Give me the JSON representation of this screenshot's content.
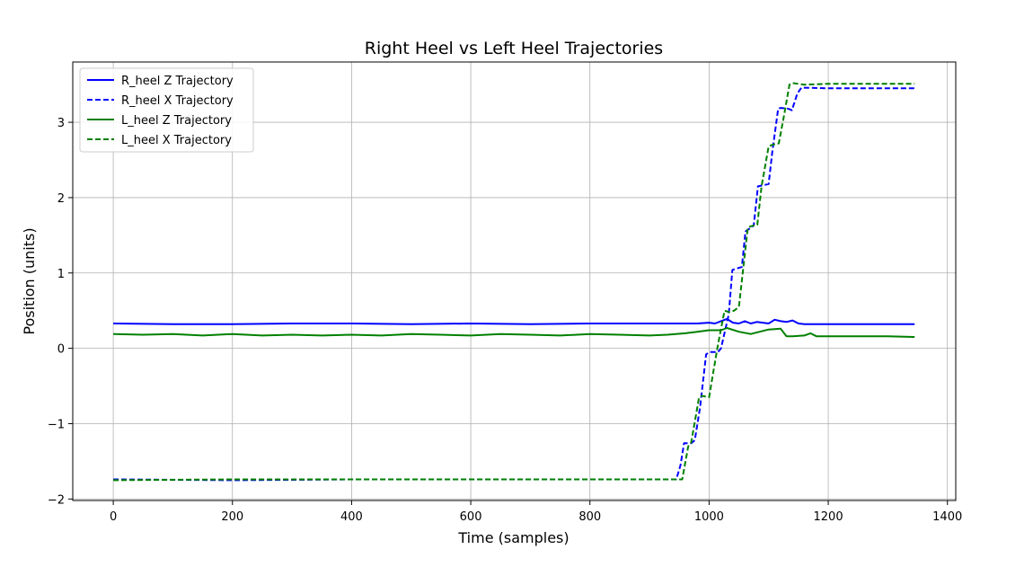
{
  "chart_data": {
    "type": "line",
    "title": "Right Heel vs Left Heel Trajectories",
    "xlabel": "Time (samples)",
    "ylabel": "Position (units)",
    "xlim": [
      -68,
      1414
    ],
    "ylim": [
      -2.02,
      3.8
    ],
    "xticks": [
      0,
      200,
      400,
      600,
      800,
      1000,
      1200,
      1400
    ],
    "yticks": [
      -2,
      -1,
      0,
      1,
      2,
      3
    ],
    "grid": true,
    "legend_position": "upper-left",
    "series": [
      {
        "name": "R_heel Z Trajectory",
        "color": "#0000ff",
        "linestyle": "solid",
        "x": [
          0,
          100,
          200,
          300,
          400,
          500,
          600,
          700,
          800,
          900,
          950,
          980,
          1000,
          1010,
          1020,
          1030,
          1040,
          1050,
          1060,
          1070,
          1080,
          1090,
          1100,
          1110,
          1120,
          1130,
          1140,
          1150,
          1160,
          1200,
          1250,
          1300,
          1345
        ],
        "y": [
          0.33,
          0.32,
          0.32,
          0.33,
          0.33,
          0.32,
          0.33,
          0.32,
          0.33,
          0.33,
          0.33,
          0.33,
          0.34,
          0.33,
          0.36,
          0.39,
          0.34,
          0.33,
          0.36,
          0.33,
          0.35,
          0.34,
          0.33,
          0.38,
          0.36,
          0.35,
          0.37,
          0.33,
          0.32,
          0.32,
          0.32,
          0.32,
          0.32
        ]
      },
      {
        "name": "R_heel X Trajectory",
        "color": "#0000ff",
        "linestyle": "dashed",
        "x": [
          0,
          200,
          400,
          600,
          800,
          945,
          952,
          958,
          970,
          976,
          985,
          995,
          1001,
          1015,
          1020,
          1033,
          1039,
          1055,
          1061,
          1075,
          1082,
          1100,
          1106,
          1116,
          1120,
          1133,
          1139,
          1148,
          1155,
          1200,
          1300,
          1345
        ],
        "y": [
          -1.74,
          -1.75,
          -1.74,
          -1.74,
          -1.74,
          -1.74,
          -1.55,
          -1.26,
          -1.26,
          -1.22,
          -0.78,
          -0.08,
          -0.05,
          -0.05,
          0.0,
          0.45,
          1.04,
          1.08,
          1.55,
          1.63,
          2.15,
          2.18,
          2.6,
          3.18,
          3.19,
          3.18,
          3.16,
          3.38,
          3.46,
          3.45,
          3.45,
          3.45
        ]
      },
      {
        "name": "L_heel Z Trajectory",
        "color": "#008000",
        "linestyle": "solid",
        "x": [
          0,
          50,
          100,
          150,
          200,
          250,
          300,
          350,
          400,
          450,
          500,
          550,
          600,
          650,
          700,
          750,
          800,
          850,
          900,
          930,
          960,
          980,
          1000,
          1020,
          1030,
          1050,
          1070,
          1100,
          1120,
          1130,
          1140,
          1160,
          1170,
          1180,
          1200,
          1250,
          1300,
          1345
        ],
        "y": [
          0.19,
          0.18,
          0.19,
          0.17,
          0.19,
          0.17,
          0.18,
          0.17,
          0.18,
          0.17,
          0.19,
          0.18,
          0.17,
          0.19,
          0.18,
          0.17,
          0.19,
          0.18,
          0.17,
          0.18,
          0.2,
          0.22,
          0.24,
          0.24,
          0.27,
          0.22,
          0.19,
          0.25,
          0.26,
          0.16,
          0.16,
          0.17,
          0.2,
          0.16,
          0.16,
          0.16,
          0.16,
          0.15
        ]
      },
      {
        "name": "L_heel X Trajectory",
        "color": "#008000",
        "linestyle": "dashed",
        "x": [
          0,
          200,
          400,
          600,
          800,
          940,
          955,
          965,
          970,
          983,
          988,
          1000,
          1007,
          1015,
          1026,
          1034,
          1042,
          1050,
          1065,
          1070,
          1081,
          1088,
          1100,
          1106,
          1117,
          1126,
          1135,
          1140,
          1160,
          1200,
          1345
        ],
        "y": [
          -1.75,
          -1.74,
          -1.74,
          -1.74,
          -1.74,
          -1.74,
          -1.74,
          -1.3,
          -1.25,
          -0.66,
          -0.63,
          -0.65,
          -0.32,
          0.05,
          0.5,
          0.48,
          0.5,
          0.55,
          1.6,
          1.62,
          1.64,
          2.15,
          2.68,
          2.7,
          2.72,
          3.1,
          3.5,
          3.52,
          3.5,
          3.51,
          3.51
        ]
      }
    ]
  }
}
